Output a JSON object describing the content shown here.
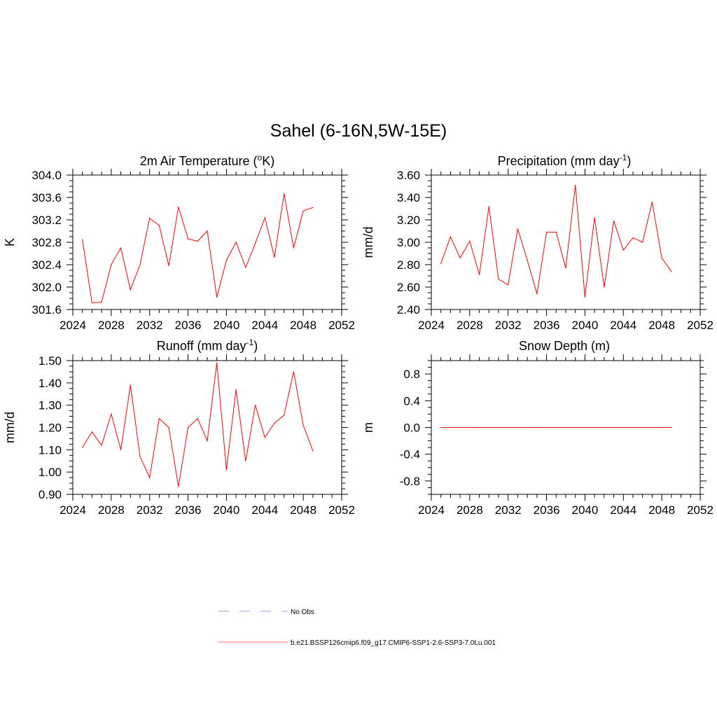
{
  "figure": {
    "title": "Sahel (6-16N,5W-15E)"
  },
  "chart_data": [
    {
      "type": "line",
      "title_main": "2m Air Temperature (",
      "title_sup1": "o",
      "title_rest": "K)",
      "ylabel": "K",
      "x": [
        2025,
        2026,
        2027,
        2028,
        2029,
        2030,
        2031,
        2032,
        2033,
        2034,
        2035,
        2036,
        2037,
        2038,
        2039,
        2040,
        2041,
        2042,
        2043,
        2044,
        2045,
        2046,
        2047,
        2048,
        2049
      ],
      "series": [
        {
          "values": [
            302.85,
            301.72,
            301.73,
            302.4,
            302.7,
            301.95,
            302.4,
            303.23,
            303.1,
            302.38,
            303.43,
            302.86,
            302.82,
            303.0,
            301.82,
            302.48,
            302.8,
            302.35,
            302.78,
            303.24,
            302.53,
            303.67,
            302.7,
            303.36,
            303.42
          ],
          "color": "#ff0000"
        }
      ],
      "xlim": [
        2024,
        2052
      ],
      "ylim": [
        301.6,
        304.0
      ],
      "xticks": [
        "2024",
        "2028",
        "2032",
        "2036",
        "2040",
        "2044",
        "2048",
        "2052"
      ],
      "yticks": [
        "301.6",
        "302.0",
        "302.4",
        "302.8",
        "303.2",
        "303.6",
        "304.0"
      ]
    },
    {
      "type": "line",
      "title_main": "Precipitation (mm day",
      "title_sup1": "-1",
      "title_rest": ")",
      "ylabel": "mm/d",
      "x": [
        2025,
        2026,
        2027,
        2028,
        2029,
        2030,
        2031,
        2032,
        2033,
        2034,
        2035,
        2036,
        2037,
        2038,
        2039,
        2040,
        2041,
        2042,
        2043,
        2044,
        2045,
        2046,
        2047,
        2048,
        2049
      ],
      "series": [
        {
          "values": [
            2.81,
            3.05,
            2.86,
            3.01,
            2.71,
            3.32,
            2.67,
            2.62,
            3.12,
            2.84,
            2.54,
            3.09,
            3.09,
            2.77,
            3.51,
            2.51,
            3.22,
            2.6,
            3.19,
            2.93,
            3.04,
            3.0,
            3.36,
            2.86,
            2.74
          ],
          "color": "#ff0000"
        }
      ],
      "xlim": [
        2024,
        2052
      ],
      "ylim": [
        2.4,
        3.6
      ],
      "xticks": [
        "2024",
        "2028",
        "2032",
        "2036",
        "2040",
        "2044",
        "2048",
        "2052"
      ],
      "yticks": [
        "2.40",
        "2.60",
        "2.80",
        "3.00",
        "3.20",
        "3.40",
        "3.60"
      ]
    },
    {
      "type": "line",
      "title_main": "Runoff (mm day",
      "title_sup1": "-1",
      "title_rest": ")",
      "ylabel": "mm/d",
      "x": [
        2025,
        2026,
        2027,
        2028,
        2029,
        2030,
        2031,
        2032,
        2033,
        2034,
        2035,
        2036,
        2037,
        2038,
        2039,
        2040,
        2041,
        2042,
        2043,
        2044,
        2045,
        2046,
        2047,
        2048,
        2049
      ],
      "series": [
        {
          "values": [
            1.11,
            1.18,
            1.12,
            1.26,
            1.1,
            1.39,
            1.07,
            0.975,
            1.24,
            1.2,
            0.935,
            1.2,
            1.24,
            1.14,
            1.49,
            1.01,
            1.37,
            1.05,
            1.3,
            1.155,
            1.22,
            1.255,
            1.45,
            1.21,
            1.095
          ],
          "color": "#ff0000"
        }
      ],
      "xlim": [
        2024,
        2052
      ],
      "ylim": [
        0.9,
        1.5
      ],
      "xticks": [
        "2024",
        "2028",
        "2032",
        "2036",
        "2040",
        "2044",
        "2048",
        "2052"
      ],
      "yticks": [
        "0.90",
        "1.00",
        "1.10",
        "1.20",
        "1.30",
        "1.40",
        "1.50"
      ]
    },
    {
      "type": "line",
      "title_main": "Snow Depth (m)",
      "title_sup1": "",
      "title_rest": "",
      "ylabel": "m",
      "x": [
        2025,
        2026,
        2027,
        2028,
        2029,
        2030,
        2031,
        2032,
        2033,
        2034,
        2035,
        2036,
        2037,
        2038,
        2039,
        2040,
        2041,
        2042,
        2043,
        2044,
        2045,
        2046,
        2047,
        2048,
        2049
      ],
      "series": [
        {
          "values": [
            0,
            0,
            0,
            0,
            0,
            0,
            0,
            0,
            0,
            0,
            0,
            0,
            0,
            0,
            0,
            0,
            0,
            0,
            0,
            0,
            0,
            0,
            0,
            0,
            0
          ],
          "color": "#ff0000"
        }
      ],
      "xlim": [
        2024,
        2052
      ],
      "ylim": [
        -1.0,
        1.0
      ],
      "xticks": [
        "2024",
        "2028",
        "2032",
        "2036",
        "2040",
        "2044",
        "2048",
        "2052"
      ],
      "yticks": [
        "-0.8",
        "-0.4",
        "0.0",
        "0.4",
        "0.8"
      ]
    }
  ],
  "legend": {
    "entries": [
      {
        "label": "No Obs",
        "color": "#9999dd",
        "style": "dashed"
      },
      {
        "label": "b.e21.BSSP126cmip6.f09_g17.CMIP6-SSP1-2.6-SSP3-7.0Lu.001",
        "color": "#ff6666",
        "style": "solid"
      }
    ]
  }
}
